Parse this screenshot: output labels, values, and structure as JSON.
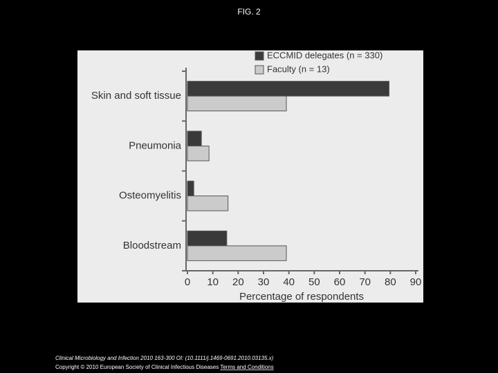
{
  "chart_data": {
    "type": "bar",
    "orientation": "horizontal",
    "title": "FIG. 2",
    "categories": [
      "Skin and soft tissue",
      "Pneumonia",
      "Osteomyelitis",
      "Bloodstream"
    ],
    "series": [
      {
        "name": "ECCMID delegates (n = 330)",
        "color": "#3a3a3a",
        "values": [
          79.5,
          5.5,
          2.5,
          15.5
        ]
      },
      {
        "name": "Faculty (n = 13)",
        "color": "#cbcbcb",
        "values": [
          39,
          8.5,
          16,
          39
        ]
      }
    ],
    "xlabel": "Percentage of respondents",
    "xlim": [
      0,
      90
    ],
    "xticks": [
      0,
      10,
      20,
      30,
      40,
      50,
      60,
      70,
      80,
      90
    ],
    "legend": "top-right",
    "grid": false
  },
  "footer": {
    "citation": "Clinical Microbiology and Infection 2010 163-300 OI: (10.1111/j.1469-0691.2010.03135.x)",
    "copyright": "Copyright © 2010 European Society of Clinical Infectious Diseases",
    "link": "Terms and Conditions"
  }
}
